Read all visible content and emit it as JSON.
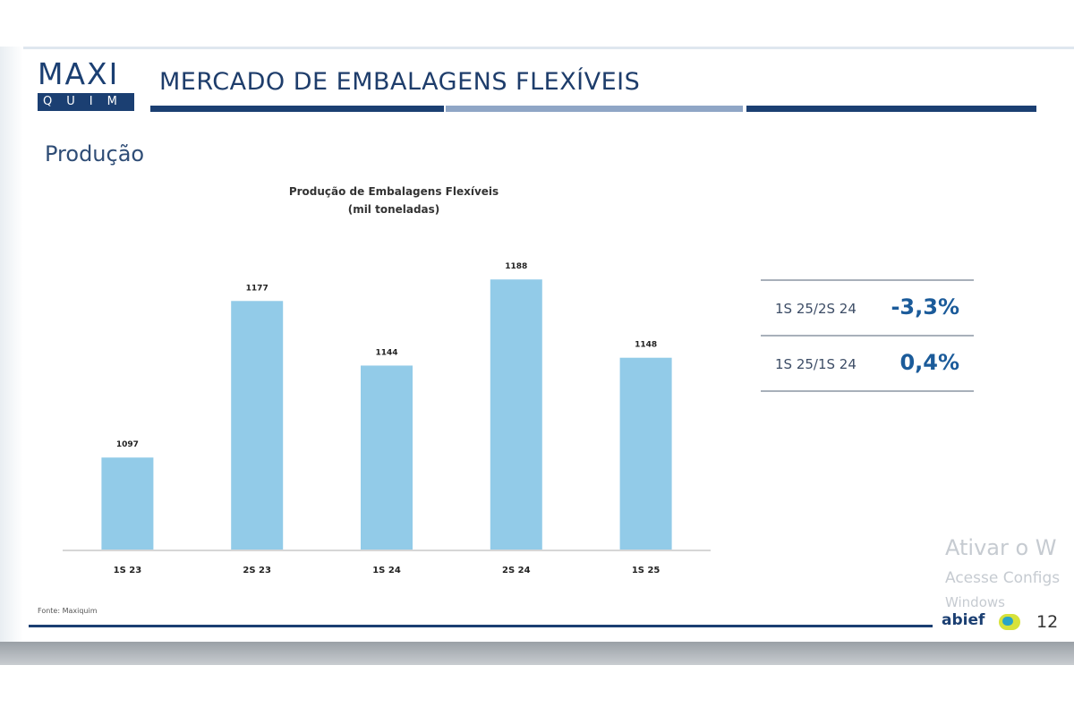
{
  "header": {
    "logo_top": "MAXI",
    "logo_bottom": "QUIM",
    "title": "MERCADO DE EMBALAGENS FLEXÍVEIS"
  },
  "section_title": "Produção",
  "chart_data": {
    "type": "bar",
    "title": "Produção de Embalagens Flexíveis",
    "subtitle": "(mil toneladas)",
    "categories": [
      "1S 23",
      "2S 23",
      "1S 24",
      "2S 24",
      "1S 25"
    ],
    "values": [
      1097,
      1177,
      1144,
      1188,
      1148
    ],
    "value_labels": [
      "1097",
      "1177",
      "1144",
      "1188",
      "1148"
    ],
    "color": "#92cbe8",
    "ylim": [
      1050,
      1200
    ],
    "grid": false,
    "legend": "none"
  },
  "comparison": [
    {
      "label": "1S 25/2S 24",
      "value": "-3,3%"
    },
    {
      "label": "1S 25/1S 24",
      "value": "0,4%"
    }
  ],
  "source": "Fonte: Maxiquim",
  "footer": {
    "logo_text": "abief",
    "page_number": "12"
  },
  "watermark": {
    "line1": "Ativar o W",
    "line2": "Acesse Configs",
    "line3": "Windows"
  },
  "colors": {
    "brand_navy": "#1b3f72",
    "rule_light": "#8fa6c6",
    "value_blue": "#1b5b9a"
  }
}
